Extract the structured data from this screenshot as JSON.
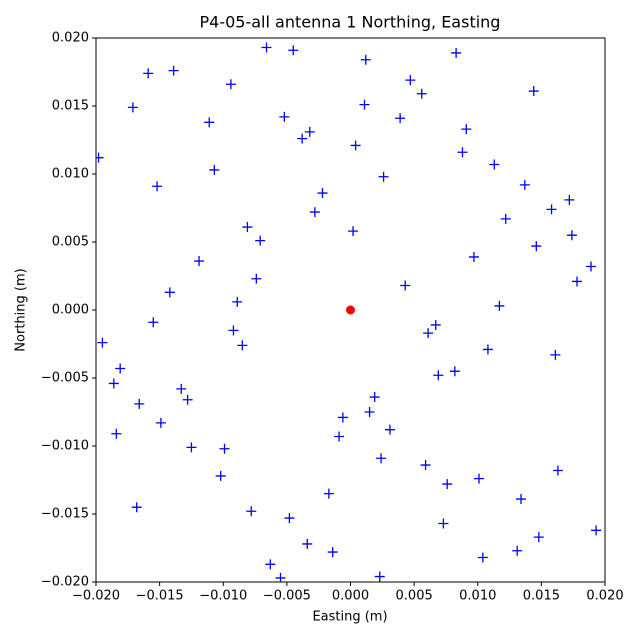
{
  "chart_data": {
    "type": "scatter",
    "title": "P4-05-all antenna 1 Northing, Easting",
    "x_label": "Easting (m)",
    "y_label": "Northing (m)",
    "xlim": [
      -0.02,
      0.02
    ],
    "ylim": [
      -0.02,
      0.02
    ],
    "xticks": [
      {
        "value": -0.02,
        "label": "−0.020"
      },
      {
        "value": -0.015,
        "label": "−0.015"
      },
      {
        "value": -0.01,
        "label": "−0.010"
      },
      {
        "value": -0.005,
        "label": "−0.005"
      },
      {
        "value": 0,
        "label": "0.000"
      },
      {
        "value": 0.005,
        "label": "0.005"
      },
      {
        "value": 0.01,
        "label": "0.010"
      },
      {
        "value": 0.015,
        "label": "0.015"
      },
      {
        "value": 0.02,
        "label": "0.020"
      }
    ],
    "yticks": [
      {
        "value": -0.02,
        "label": "−0.020"
      },
      {
        "value": -0.015,
        "label": "−0.015"
      },
      {
        "value": -0.01,
        "label": "−0.010"
      },
      {
        "value": -0.005,
        "label": "−0.005"
      },
      {
        "value": 0,
        "label": "0.000"
      },
      {
        "value": 0.005,
        "label": "0.005"
      },
      {
        "value": 0.01,
        "label": "0.010"
      },
      {
        "value": 0.015,
        "label": "0.015"
      },
      {
        "value": 0.02,
        "label": "0.020"
      }
    ],
    "series": [
      {
        "marker": "plus",
        "color": "#0000ff",
        "x": [
          0.0012,
          -0.0034,
          0.0056,
          -0.0078,
          0.0091,
          -0.0102,
          0.0113,
          -0.0125,
          0.0137,
          -0.0149,
          0.0158,
          -0.0166,
          0.0174,
          -0.0181,
          0.0189,
          -0.0195,
          0.0023,
          -0.0045,
          0.0067,
          -0.0089,
          0.0004,
          -0.0017,
          0.0031,
          -0.0052,
          0.0073,
          -0.0094,
          0.0108,
          -0.0119,
          0.0131,
          -0.0142,
          0.0019,
          -0.0028,
          0.0047,
          -0.0063,
          0.0082,
          -0.0071,
          0.0059,
          -0.0038,
          0.0026,
          -0.0009,
          0.0144,
          -0.0155,
          0.0163,
          -0.0171,
          0.0178,
          -0.0186,
          0.0193,
          -0.0198,
          0.0097,
          -0.0085,
          0.0015,
          -0.0022,
          0.0039,
          -0.0048,
          0.0061,
          -0.0066,
          0.0076,
          -0.0081,
          0.0088,
          -0.0099,
          0.0104,
          -0.0111,
          0.0117,
          -0.0128,
          0.0134,
          -0.0139,
          0.0146,
          -0.0152,
          0.0161,
          -0.0168,
          0.0002,
          -0.0006,
          0.0011,
          -0.0014,
          0.0024,
          -0.0032,
          0.0043,
          -0.0055,
          0.0069,
          -0.0074,
          0.0083,
          -0.0092,
          0.0101,
          -0.0107,
          0.0122,
          -0.0133,
          0.0148,
          -0.0159,
          0.0172,
          -0.0184
        ],
        "y": [
          0.0184,
          -0.0172,
          0.0159,
          -0.0148,
          0.0133,
          -0.0122,
          0.0107,
          -0.0101,
          0.0092,
          -0.0083,
          0.0074,
          -0.0069,
          0.0055,
          -0.0043,
          0.0032,
          -0.0024,
          -0.0196,
          0.0191,
          -0.0011,
          0.0006,
          0.0121,
          -0.0135,
          -0.0088,
          0.0142,
          -0.0157,
          0.0166,
          -0.0029,
          0.0036,
          -0.0177,
          0.0013,
          -0.0064,
          0.0072,
          0.0169,
          -0.0187,
          -0.0045,
          0.0051,
          -0.0114,
          0.0126,
          0.0098,
          -0.0093,
          0.0161,
          -0.0009,
          -0.0118,
          0.0149,
          0.0021,
          -0.0054,
          -0.0162,
          0.0112,
          0.0039,
          -0.0026,
          -0.0075,
          0.0086,
          0.0141,
          -0.0153,
          -0.0017,
          0.0193,
          -0.0128,
          0.0061,
          0.0116,
          -0.0102,
          -0.0182,
          0.0138,
          0.0003,
          -0.0066,
          -0.0139,
          0.0176,
          0.0047,
          0.0091,
          -0.0033,
          -0.0145,
          0.0058,
          -0.0079,
          0.0151,
          -0.0178,
          -0.0109,
          0.0131,
          0.0018,
          -0.0197,
          -0.0048,
          0.0023,
          0.0189,
          -0.0015,
          -0.0124,
          0.0103,
          0.0067,
          -0.0058,
          -0.0167,
          0.0174,
          0.0081,
          -0.0091
        ]
      },
      {
        "marker": "dot",
        "color": "#ff0000",
        "x": [
          0
        ],
        "y": [
          0
        ]
      }
    ]
  }
}
